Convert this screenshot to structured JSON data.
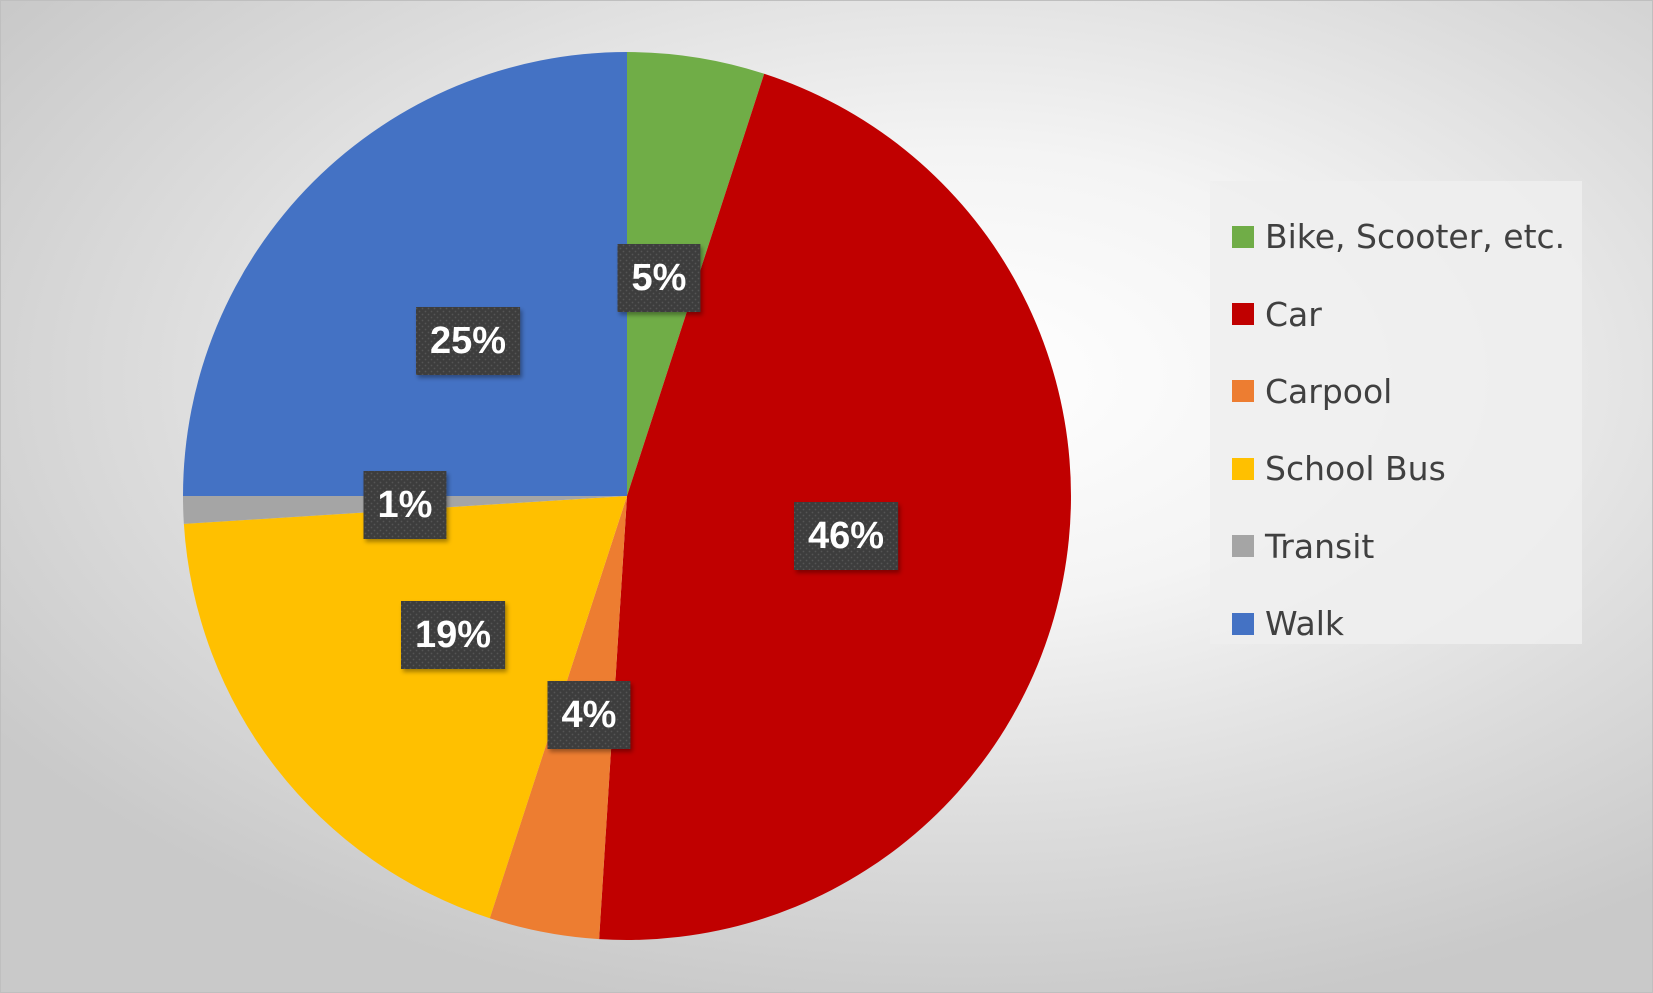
{
  "chart_data": {
    "type": "pie",
    "title": "",
    "start_angle_deg": 0,
    "direction": "clockwise",
    "data_label_format": "percent",
    "legend_position": "right",
    "slices": [
      {
        "name": "Bike, Scooter, etc.",
        "value": 5,
        "label": "5%",
        "color": "#70ad47"
      },
      {
        "name": "Car",
        "value": 46,
        "label": "46%",
        "color": "#c00000"
      },
      {
        "name": "Carpool",
        "value": 4,
        "label": "4%",
        "color": "#ed7d31"
      },
      {
        "name": "School Bus",
        "value": 19,
        "label": "19%",
        "color": "#ffc000"
      },
      {
        "name": "Transit",
        "value": 1,
        "label": "1%",
        "color": "#a5a5a5"
      },
      {
        "name": "Walk",
        "value": 25,
        "label": "25%",
        "color": "#4472c4"
      }
    ]
  },
  "legend": {
    "items": [
      {
        "label": "Bike, Scooter, etc.",
        "color": "#70ad47"
      },
      {
        "label": "Car",
        "color": "#c00000"
      },
      {
        "label": "Carpool",
        "color": "#ed7d31"
      },
      {
        "label": "School Bus",
        "color": "#ffc000"
      },
      {
        "label": "Transit",
        "color": "#a5a5a5"
      },
      {
        "label": "Walk",
        "color": "#4472c4"
      }
    ]
  }
}
